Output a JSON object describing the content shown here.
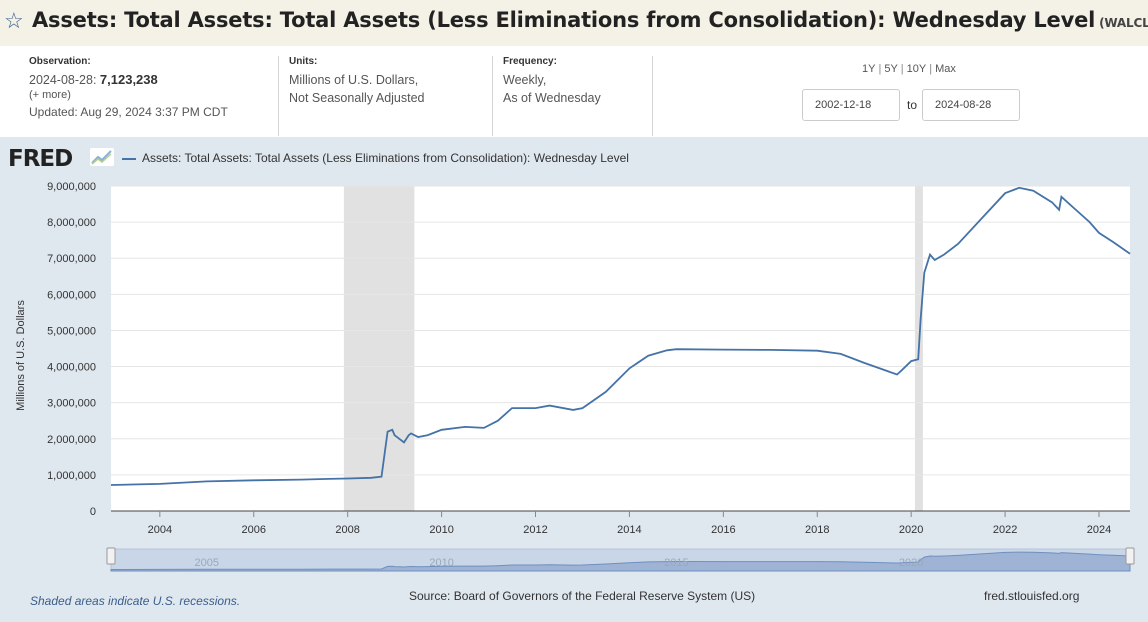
{
  "header": {
    "title": "Assets: Total Assets: Total Assets (Less Eliminations from Consolidation): Wednesday Level",
    "series_id": "(WALCL)"
  },
  "meta": {
    "observation_label": "Observation:",
    "observation_date": "2024-08-28:",
    "observation_value": "7,123,238",
    "more": "(+ more)",
    "updated": "Updated: Aug 29, 2024 3:37 PM CDT",
    "units_label": "Units:",
    "units_line1": "Millions of U.S. Dollars,",
    "units_line2": "Not Seasonally Adjusted",
    "frequency_label": "Frequency:",
    "frequency_line1": "Weekly,",
    "frequency_line2": "As of Wednesday"
  },
  "controls": {
    "range_1y": "1Y",
    "range_5y": "5Y",
    "range_10y": "10Y",
    "range_max": "Max",
    "sep": "|",
    "start_date": "2002-12-18",
    "to_label": "to",
    "end_date": "2024-08-28"
  },
  "logo": "FRED",
  "colors": {
    "series": "#4572a7",
    "recession": "#e1e1e1",
    "navigator_fill": "#9fb4d4"
  },
  "chart_data": {
    "type": "line",
    "legend": "Assets: Total Assets: Total Assets (Less Eliminations from Consolidation): Wednesday Level",
    "ylabel": "Millions of U.S. Dollars",
    "xlim": [
      2002.96,
      2024.66
    ],
    "ylim": [
      0,
      9000000
    ],
    "yticks": [
      0,
      1000000,
      2000000,
      3000000,
      4000000,
      5000000,
      6000000,
      7000000,
      8000000,
      9000000
    ],
    "ytick_labels": [
      "0",
      "1,000,000",
      "2,000,000",
      "3,000,000",
      "4,000,000",
      "5,000,000",
      "6,000,000",
      "7,000,000",
      "8,000,000",
      "9,000,000"
    ],
    "xticks": [
      2004,
      2006,
      2008,
      2010,
      2012,
      2014,
      2016,
      2018,
      2020,
      2022,
      2024
    ],
    "xtick_labels": [
      "2004",
      "2006",
      "2008",
      "2010",
      "2012",
      "2014",
      "2016",
      "2018",
      "2020",
      "2022",
      "2024"
    ],
    "navigator_labels": [
      {
        "x": 2005,
        "text": "2005"
      },
      {
        "x": 2010,
        "text": "2010"
      },
      {
        "x": 2015,
        "text": "2015"
      },
      {
        "x": 2020,
        "text": "2020"
      }
    ],
    "recessions": [
      [
        2007.92,
        2009.42
      ],
      [
        2020.08,
        2020.25
      ]
    ],
    "grid": true,
    "series": [
      {
        "name": "Assets: Total Assets: Total Assets (Less Eliminations from Consolidation): Wednesday Level",
        "x": [
          2002.96,
          2004.0,
          2005.0,
          2006.0,
          2007.0,
          2007.6,
          2008.0,
          2008.5,
          2008.72,
          2008.85,
          2008.95,
          2009.0,
          2009.1,
          2009.2,
          2009.3,
          2009.35,
          2009.5,
          2009.7,
          2010.0,
          2010.5,
          2010.9,
          2011.2,
          2011.5,
          2012.0,
          2012.3,
          2012.8,
          2013.0,
          2013.5,
          2014.0,
          2014.4,
          2014.8,
          2015.0,
          2016.0,
          2017.0,
          2018.0,
          2018.5,
          2019.0,
          2019.7,
          2019.8,
          2020.0,
          2020.15,
          2020.2,
          2020.28,
          2020.4,
          2020.5,
          2020.7,
          2021.0,
          2021.5,
          2022.0,
          2022.3,
          2022.6,
          2023.0,
          2023.15,
          2023.2,
          2023.5,
          2023.8,
          2024.0,
          2024.3,
          2024.66
        ],
        "y": [
          720000,
          750000,
          820000,
          850000,
          870000,
          890000,
          900000,
          920000,
          950000,
          2200000,
          2250000,
          2100000,
          2000000,
          1900000,
          2100000,
          2150000,
          2050000,
          2100000,
          2250000,
          2330000,
          2300000,
          2500000,
          2850000,
          2850000,
          2920000,
          2800000,
          2850000,
          3300000,
          3950000,
          4300000,
          4450000,
          4480000,
          4470000,
          4460000,
          4440000,
          4350000,
          4100000,
          3780000,
          3900000,
          4150000,
          4200000,
          5300000,
          6600000,
          7100000,
          6950000,
          7100000,
          7400000,
          8100000,
          8800000,
          8950000,
          8870000,
          8550000,
          8340000,
          8700000,
          8350000,
          8000000,
          7700000,
          7450000,
          7123238
        ]
      }
    ]
  },
  "footer": {
    "recession_note": "Shaded areas indicate U.S. recessions.",
    "source": "Source: Board of Governors of the Federal Reserve System (US)",
    "url": "fred.stlouisfed.org"
  }
}
